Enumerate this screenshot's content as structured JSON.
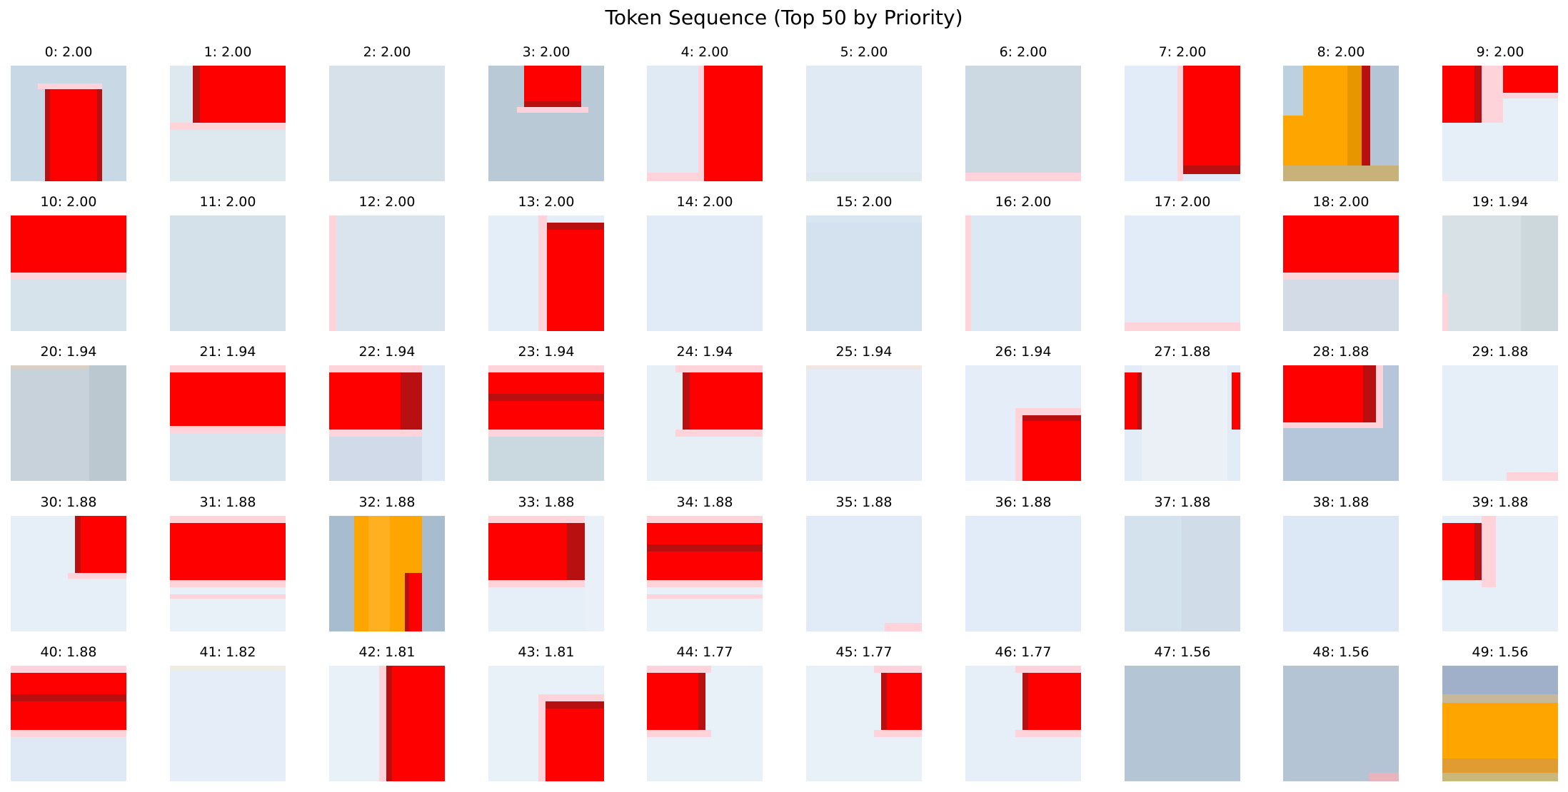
{
  "figure": {
    "title": "Token Sequence (Top 50 by Priority)"
  },
  "chart_data": {
    "type": "image-grid",
    "title": "Token Sequence (Top 50 by Priority)",
    "rows": 5,
    "cols": 10,
    "colors": {
      "red": "#ff0000",
      "dark_red": "#b01010",
      "pink": "#ffd0d6",
      "orange": "#ffa500",
      "pale_blue": "#e0ebf7",
      "gray_blue": "#b4c6d6"
    },
    "tokens": [
      {
        "index": 0,
        "priority": "2.00",
        "label": "0: 2.00",
        "bg": "#c8d8e4",
        "content": "red block center-bottom"
      },
      {
        "index": 1,
        "priority": "2.00",
        "label": "1: 2.00",
        "bg": "#dde8ef",
        "content": "red block top-right"
      },
      {
        "index": 2,
        "priority": "2.00",
        "label": "2: 2.00",
        "bg": "#d6e1ea",
        "content": "plain"
      },
      {
        "index": 3,
        "priority": "2.00",
        "label": "3: 2.00",
        "bg": "#b9c9d6",
        "content": "red block top-center"
      },
      {
        "index": 4,
        "priority": "2.00",
        "label": "4: 2.00",
        "bg": "#e0eaf5",
        "content": "red bar right"
      },
      {
        "index": 5,
        "priority": "2.00",
        "label": "5: 2.00",
        "bg": "#e0eaf5",
        "content": "plain"
      },
      {
        "index": 6,
        "priority": "2.00",
        "label": "6: 2.00",
        "bg": "#ccd8e2",
        "content": "plain"
      },
      {
        "index": 7,
        "priority": "2.00",
        "label": "7: 2.00",
        "bg": "#e2ecf8",
        "content": "red bar right"
      },
      {
        "index": 8,
        "priority": "2.00",
        "label": "8: 2.00",
        "bg": "#b4c6d6",
        "content": "orange block"
      },
      {
        "index": 9,
        "priority": "2.00",
        "label": "9: 2.00",
        "bg": "#e6eef8",
        "content": "red blocks top"
      },
      {
        "index": 10,
        "priority": "2.00",
        "label": "10: 2.00",
        "bg": "#d6e3ea",
        "content": "red band top"
      },
      {
        "index": 11,
        "priority": "2.00",
        "label": "11: 2.00",
        "bg": "#d4e0ea",
        "content": "plain"
      },
      {
        "index": 12,
        "priority": "2.00",
        "label": "12: 2.00",
        "bg": "#d9e4ee",
        "content": "plain"
      },
      {
        "index": 13,
        "priority": "2.00",
        "label": "13: 2.00",
        "bg": "#e4eef8",
        "content": "red bar right"
      },
      {
        "index": 14,
        "priority": "2.00",
        "label": "14: 2.00",
        "bg": "#e0ebf7",
        "content": "plain"
      },
      {
        "index": 15,
        "priority": "2.00",
        "label": "15: 2.00",
        "bg": "#d4e2ef",
        "content": "plain"
      },
      {
        "index": 16,
        "priority": "2.00",
        "label": "16: 2.00",
        "bg": "#dde8f5",
        "content": "plain"
      },
      {
        "index": 17,
        "priority": "2.00",
        "label": "17: 2.00",
        "bg": "#e2ecf8",
        "content": "plain"
      },
      {
        "index": 18,
        "priority": "2.00",
        "label": "18: 2.00",
        "bg": "#d2dbe6",
        "content": "red band top"
      },
      {
        "index": 19,
        "priority": "1.94",
        "label": "19: 1.94",
        "bg": "#d8e2e6",
        "content": "plain"
      },
      {
        "index": 20,
        "priority": "1.94",
        "label": "20: 1.94",
        "bg": "#c8d2da",
        "content": "plain"
      },
      {
        "index": 21,
        "priority": "1.94",
        "label": "21: 1.94",
        "bg": "#d9e5ee",
        "content": "red band upper"
      },
      {
        "index": 22,
        "priority": "1.94",
        "label": "22: 1.94",
        "bg": "#d0dae8",
        "content": "red band upper"
      },
      {
        "index": 23,
        "priority": "1.94",
        "label": "23: 1.94",
        "bg": "#cad8e0",
        "content": "red band upper"
      },
      {
        "index": 24,
        "priority": "1.94",
        "label": "24: 1.94",
        "bg": "#e6eef6",
        "content": "red block right"
      },
      {
        "index": 25,
        "priority": "1.94",
        "label": "25: 1.94",
        "bg": "#e4edf7",
        "content": "plain"
      },
      {
        "index": 26,
        "priority": "1.94",
        "label": "26: 1.94",
        "bg": "#e4edf8",
        "content": "red block bottom-right"
      },
      {
        "index": 27,
        "priority": "1.88",
        "label": "27: 1.88",
        "bg": "#e2ecf6",
        "content": "red edges"
      },
      {
        "index": 28,
        "priority": "1.88",
        "label": "28: 1.88",
        "bg": "#b6c6da",
        "content": "red block top-left"
      },
      {
        "index": 29,
        "priority": "1.88",
        "label": "29: 1.88",
        "bg": "#e6eef8",
        "content": "plain"
      },
      {
        "index": 30,
        "priority": "1.88",
        "label": "30: 1.88",
        "bg": "#e6eef8",
        "content": "red block top-right"
      },
      {
        "index": 31,
        "priority": "1.88",
        "label": "31: 1.88",
        "bg": "#e8f0f8",
        "content": "red band upper"
      },
      {
        "index": 32,
        "priority": "1.88",
        "label": "32: 1.88",
        "bg": "#a8bcd0",
        "content": "orange bar"
      },
      {
        "index": 33,
        "priority": "1.88",
        "label": "33: 1.88",
        "bg": "#e6eef8",
        "content": "red band upper"
      },
      {
        "index": 34,
        "priority": "1.88",
        "label": "34: 1.88",
        "bg": "#e8f0f8",
        "content": "red band upper"
      },
      {
        "index": 35,
        "priority": "1.88",
        "label": "35: 1.88",
        "bg": "#e0ebf7",
        "content": "plain"
      },
      {
        "index": 36,
        "priority": "1.88",
        "label": "36: 1.88",
        "bg": "#e2ecf8",
        "content": "plain"
      },
      {
        "index": 37,
        "priority": "1.88",
        "label": "37: 1.88",
        "bg": "#d4e2ee",
        "content": "plain"
      },
      {
        "index": 38,
        "priority": "1.88",
        "label": "38: 1.88",
        "bg": "#dce8f5",
        "content": "plain"
      },
      {
        "index": 39,
        "priority": "1.88",
        "label": "39: 1.88",
        "bg": "#e6eef8",
        "content": "red block top-left"
      },
      {
        "index": 40,
        "priority": "1.88",
        "label": "40: 1.88",
        "bg": "#dfe9f5",
        "content": "red band upper"
      },
      {
        "index": 41,
        "priority": "1.82",
        "label": "41: 1.82",
        "bg": "#e4edf8",
        "content": "plain"
      },
      {
        "index": 42,
        "priority": "1.81",
        "label": "42: 1.81",
        "bg": "#e8f0f8",
        "content": "red bar right"
      },
      {
        "index": 43,
        "priority": "1.81",
        "label": "43: 1.81",
        "bg": "#e8f0f8",
        "content": "red block bottom-right"
      },
      {
        "index": 44,
        "priority": "1.77",
        "label": "44: 1.77",
        "bg": "#e8f0f8",
        "content": "red block top-left"
      },
      {
        "index": 45,
        "priority": "1.77",
        "label": "45: 1.77",
        "bg": "#e8f0f8",
        "content": "red block right"
      },
      {
        "index": 46,
        "priority": "1.77",
        "label": "46: 1.77",
        "bg": "#e6eef8",
        "content": "red block right"
      },
      {
        "index": 47,
        "priority": "1.56",
        "label": "47: 1.56",
        "bg": "#b4c6d6",
        "content": "plain"
      },
      {
        "index": 48,
        "priority": "1.56",
        "label": "48: 1.56",
        "bg": "#b4c4d4",
        "content": "plain"
      },
      {
        "index": 49,
        "priority": "1.56",
        "label": "49: 1.56",
        "bg": "#a8b8cc",
        "content": "orange band"
      }
    ]
  }
}
